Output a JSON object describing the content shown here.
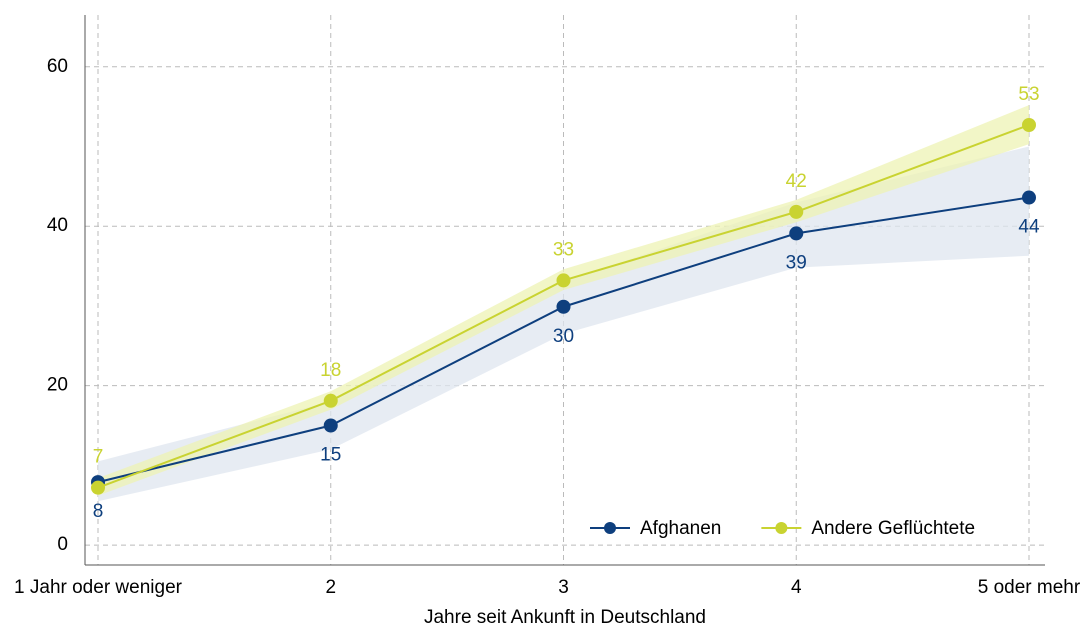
{
  "chart_data": {
    "type": "line",
    "x_label": "Jahre seit Ankunft in Deutschland",
    "categories": [
      "1 Jahr oder weniger",
      "2",
      "3",
      "4",
      "5 oder mehr"
    ],
    "series": [
      {
        "name": "Afghanen",
        "color": "#0e3f7e",
        "band_color": "#dfe5ef",
        "values": [
          7.9,
          15,
          29.9,
          39.1,
          43.6
        ],
        "value_labels": [
          "8",
          "15",
          "30",
          "39",
          "44"
        ],
        "lower": [
          5.5,
          12,
          26.5,
          34.8,
          36.3
        ],
        "upper": [
          10.5,
          18,
          33,
          43,
          50
        ]
      },
      {
        "name": "Andere Geflüchtete",
        "color": "#c9d331",
        "band_color": "#eef3b4",
        "values": [
          7.2,
          18.1,
          33.2,
          41.8,
          52.7
        ],
        "value_labels": [
          "7",
          "18",
          "33",
          "42",
          "53"
        ],
        "lower": [
          6.2,
          17,
          32,
          40.5,
          50.3
        ],
        "upper": [
          8.4,
          19.3,
          34.6,
          43.3,
          55.2
        ]
      }
    ],
    "ylim": [
      -2.5,
      66.5
    ],
    "yticks": [
      0,
      20,
      40,
      60
    ],
    "grid": true,
    "legend_position": "lower right"
  }
}
